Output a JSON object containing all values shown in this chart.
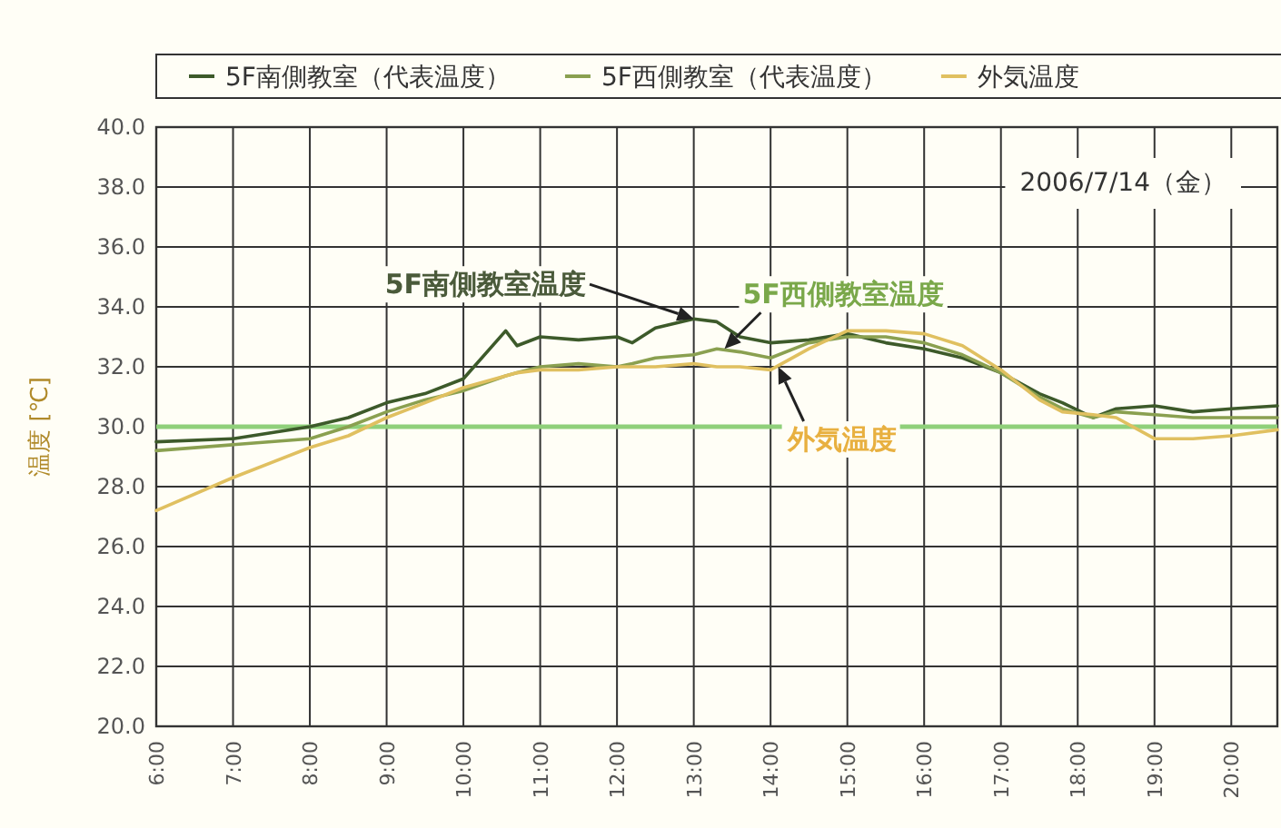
{
  "chart_data": {
    "type": "line",
    "ylabel": "温度 [℃]",
    "legend": "top",
    "grid": true,
    "line_style": "solid",
    "annotations": [
      "2006/7/14（金）",
      {
        "text": "5F南側教室温度",
        "x": 13.0,
        "y": 33.6
      },
      {
        "text": "5F西側教室温度",
        "x": 13.4,
        "y": 32.6
      },
      {
        "text": "外気温度",
        "x": 14.1,
        "y": 32.0
      }
    ],
    "xlim": [
      6,
      20.6
    ],
    "ylim": [
      20,
      40
    ],
    "xticks": [
      {
        "value": 6,
        "label": "6:00"
      },
      {
        "value": 7,
        "label": "7:00"
      },
      {
        "value": 8,
        "label": "8:00"
      },
      {
        "value": 9,
        "label": "9:00"
      },
      {
        "value": 10,
        "label": "10:00"
      },
      {
        "value": 11,
        "label": "11:00"
      },
      {
        "value": 12,
        "label": "12:00"
      },
      {
        "value": 13,
        "label": "13:00"
      },
      {
        "value": 14,
        "label": "14:00"
      },
      {
        "value": 15,
        "label": "15:00"
      },
      {
        "value": 16,
        "label": "16:00"
      },
      {
        "value": 17,
        "label": "17:00"
      },
      {
        "value": 18,
        "label": "18:00"
      },
      {
        "value": 19,
        "label": "19:00"
      },
      {
        "value": 20,
        "label": "20:00"
      }
    ],
    "yticks": [
      {
        "value": 20,
        "label": "20.0"
      },
      {
        "value": 22,
        "label": "22.0"
      },
      {
        "value": 24,
        "label": "24.0"
      },
      {
        "value": 26,
        "label": "26.0"
      },
      {
        "value": 28,
        "label": "28.0"
      },
      {
        "value": 30,
        "label": "30.0"
      },
      {
        "value": 32,
        "label": "32.0"
      },
      {
        "value": 34,
        "label": "34.0"
      },
      {
        "value": 36,
        "label": "36.0"
      },
      {
        "value": 38,
        "label": "38.0"
      },
      {
        "value": 40,
        "label": "40.0"
      }
    ],
    "ref_lines": [
      {
        "axis": "y",
        "value": 30,
        "color": "#8fd07a"
      }
    ],
    "x": [
      6,
      7,
      8,
      8.5,
      9,
      9.5,
      10,
      10.55,
      10.7,
      11,
      11.5,
      12,
      12.2,
      12.5,
      13,
      13.3,
      13.6,
      14,
      14.5,
      15,
      15.5,
      16,
      16.5,
      17,
      17.5,
      17.8,
      18.2,
      18.5,
      19,
      19.5,
      20,
      20.6
    ],
    "series": [
      {
        "name": "5F南側教室（代表温度）",
        "color": "#3d5a2a",
        "values": [
          29.5,
          29.6,
          30.0,
          30.3,
          30.8,
          31.1,
          31.6,
          33.2,
          32.7,
          33.0,
          32.9,
          33.0,
          32.8,
          33.3,
          33.6,
          33.5,
          33.0,
          32.8,
          32.9,
          33.1,
          32.8,
          32.6,
          32.3,
          31.8,
          31.1,
          30.8,
          30.3,
          30.6,
          30.7,
          30.5,
          30.6,
          30.7
        ]
      },
      {
        "name": "5F西側教室（代表温度）",
        "color": "#8aa050",
        "values": [
          29.2,
          29.4,
          29.6,
          30.0,
          30.5,
          30.9,
          31.2,
          31.7,
          31.8,
          32.0,
          32.1,
          32.0,
          32.1,
          32.3,
          32.4,
          32.6,
          32.5,
          32.3,
          32.8,
          33.0,
          33.0,
          32.8,
          32.4,
          31.8,
          31.0,
          30.6,
          30.3,
          30.5,
          30.4,
          30.3,
          30.3,
          30.3
        ]
      },
      {
        "name": "外気温度",
        "color": "#e0c060",
        "values": [
          27.2,
          28.3,
          29.3,
          29.7,
          30.3,
          30.8,
          31.3,
          31.7,
          31.8,
          31.9,
          31.9,
          32.0,
          32.0,
          32.0,
          32.1,
          32.0,
          32.0,
          31.9,
          32.6,
          33.2,
          33.2,
          33.1,
          32.7,
          31.9,
          30.9,
          30.5,
          30.4,
          30.3,
          29.6,
          29.6,
          29.7,
          29.9
        ]
      }
    ]
  }
}
